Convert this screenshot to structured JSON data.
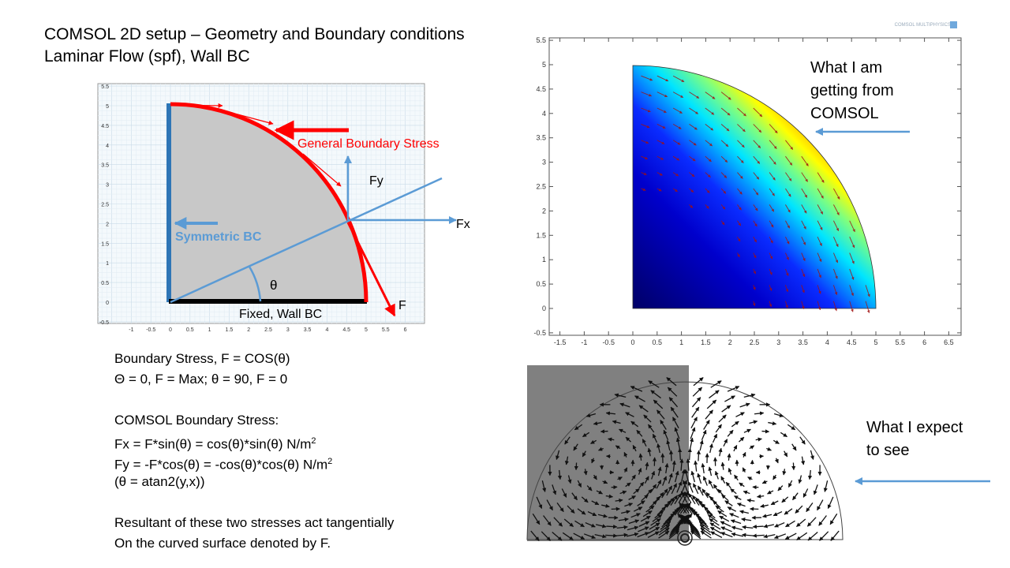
{
  "title": {
    "line1": "COMSOL 2D setup – Geometry and Boundary conditions",
    "line2": "Laminar Flow (spf), Wall BC"
  },
  "setup_figure": {
    "x_ticks": [
      "-1",
      "-0.5",
      "0",
      "0.5",
      "1",
      "1.5",
      "2",
      "2.5",
      "3",
      "3.5",
      "4",
      "4.5",
      "5",
      "5.5",
      "6"
    ],
    "y_ticks": [
      "-0.5",
      "0",
      "0.5",
      "1",
      "1.5",
      "2",
      "2.5",
      "3",
      "3.5",
      "4",
      "4.5",
      "5",
      "5.5"
    ],
    "general_boundary_stress": "General Boundary Stress",
    "symmetric_bc": "Symmetric BC",
    "fixed_wall_bc": "Fixed, Wall BC",
    "theta": "θ",
    "fx": "Fx",
    "fy": "Fy",
    "f": "F",
    "colors": {
      "stress": "#ff0000",
      "symmetric": "#5b9bd5",
      "axis": "#2e75b6",
      "domain": "#c8c8c8"
    }
  },
  "notes": {
    "l1": "Boundary Stress, F = COS(θ)",
    "l2": "Θ = 0, F = Max; θ = 90, F = 0",
    "l3": "COMSOL Boundary Stress:",
    "l4": "Fx = F*sin(θ) = cos(θ)*sin(θ)  N/m",
    "l5": "Fy = -F*cos(θ) = -cos(θ)*cos(θ)  N/m",
    "sup": "2",
    "l6": "(θ = atan2(y,x))",
    "l7": "Resultant of these two stresses act tangentially",
    "l8": "On the curved surface denoted by F."
  },
  "comsol_result": {
    "x_ticks": [
      "-1.5",
      "-1",
      "-0.5",
      "0",
      "0.5",
      "1",
      "1.5",
      "2",
      "2.5",
      "3",
      "3.5",
      "4",
      "4.5",
      "5",
      "5.5",
      "6",
      "6.5"
    ],
    "y_ticks": [
      "-0.5",
      "0",
      "0.5",
      "1",
      "1.5",
      "2",
      "2.5",
      "3",
      "3.5",
      "4",
      "4.5",
      "5",
      "5.5"
    ],
    "logo": "COMSOL MULTIPHYSICS",
    "callout": [
      "What I am",
      "getting from",
      "COMSOL"
    ]
  },
  "expected": {
    "callout": [
      "What I expect",
      "to see"
    ]
  }
}
